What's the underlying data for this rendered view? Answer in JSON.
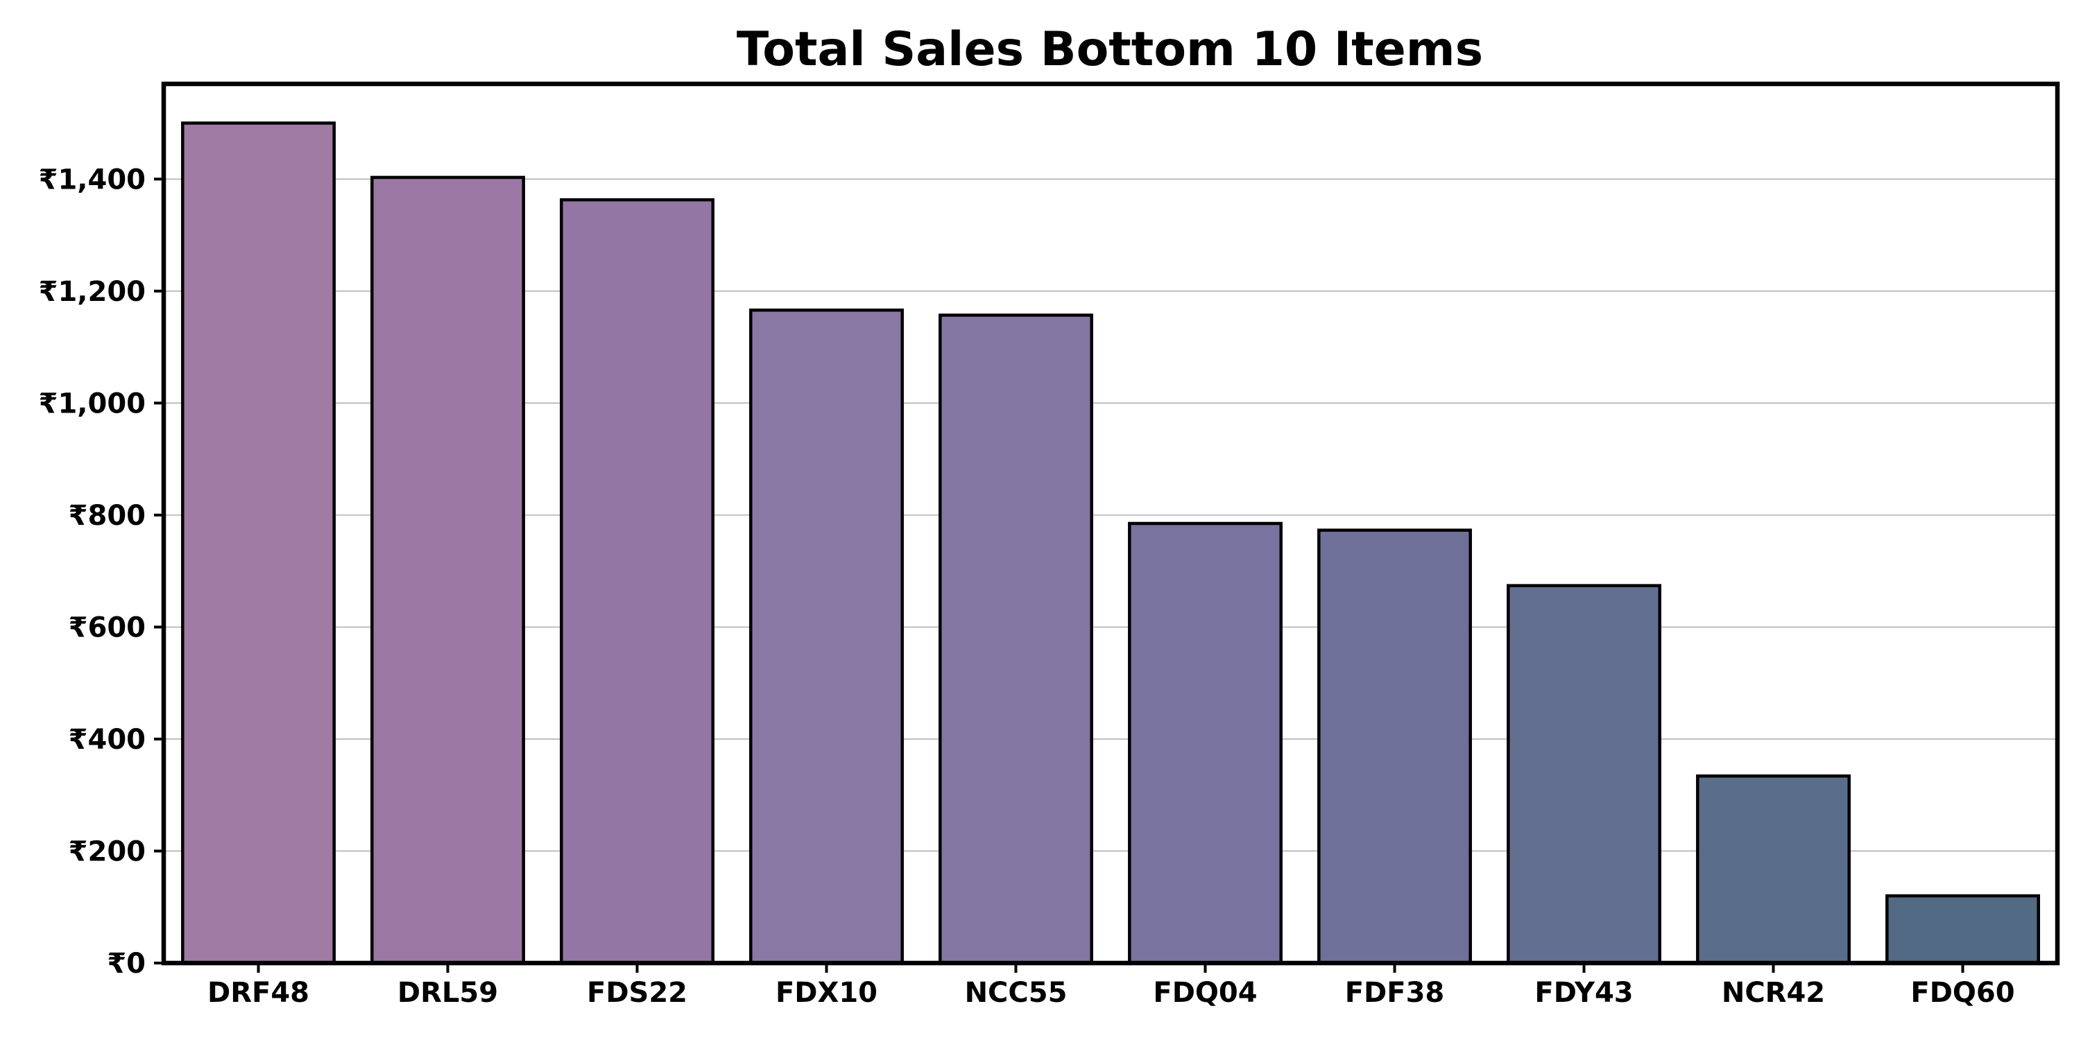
{
  "chart_data": {
    "type": "bar",
    "title": "Total Sales Bottom 10 Items",
    "xlabel": "",
    "ylabel": "",
    "categories": [
      "DRF48",
      "DRL59",
      "FDS22",
      "FDX10",
      "NCC55",
      "FDQ04",
      "FDF38",
      "FDY43",
      "NCR42",
      "FDQ60"
    ],
    "values": [
      1500,
      1403,
      1363,
      1166,
      1157,
      785,
      773,
      674,
      334,
      120
    ],
    "ylim": [
      0,
      1570
    ],
    "yticks": [
      0,
      200,
      400,
      600,
      800,
      1000,
      1200,
      1400
    ],
    "ytick_labels": [
      "₹0",
      "₹200",
      "₹400",
      "₹600",
      "₹800",
      "₹1,000",
      "₹1,200",
      "₹1,400"
    ],
    "grid": "horizontal",
    "legend": "none",
    "bar_colors": [
      "#a07ba4",
      "#9b78a4",
      "#9476a5",
      "#8a78a4",
      "#8477a3",
      "#7a74a0",
      "#6f719a",
      "#636f91",
      "#5a6d8b",
      "#526a84"
    ],
    "edge_color": "#000000"
  }
}
